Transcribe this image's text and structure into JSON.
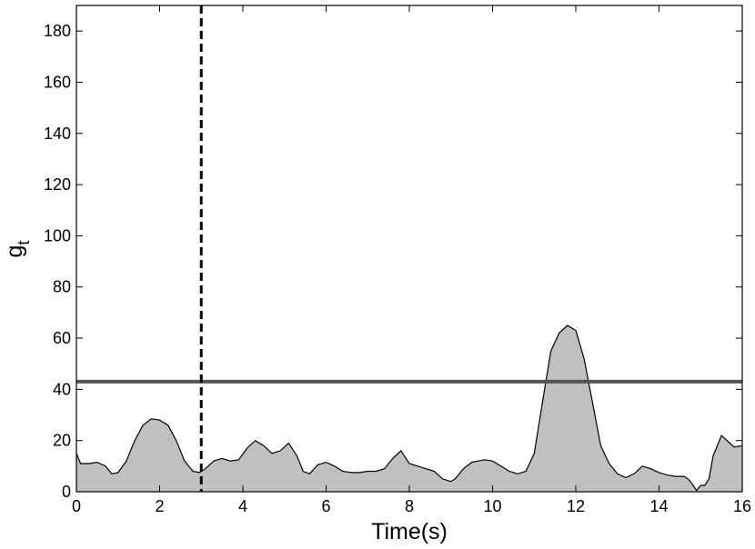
{
  "chart_data": {
    "type": "area",
    "xlabel": "Time(s)",
    "ylabel": "g",
    "ylabel_subscript": "t",
    "xlim": [
      0,
      16
    ],
    "ylim": [
      0,
      190
    ],
    "xticks": [
      0,
      2,
      4,
      6,
      8,
      10,
      12,
      14,
      16
    ],
    "yticks": [
      0,
      20,
      40,
      60,
      80,
      100,
      120,
      140,
      160,
      180
    ],
    "grid": false,
    "legend": "none",
    "colors": {
      "fill": "#c0c0c0",
      "line": "#000000",
      "threshold": "#555555",
      "marker": "#000000"
    },
    "threshold": 43,
    "vline_x": 3.0,
    "series": [
      {
        "x": [
          0,
          0.1,
          0.3,
          0.5,
          0.7,
          0.85,
          1.0,
          1.2,
          1.4,
          1.6,
          1.8,
          2.0,
          2.2,
          2.4,
          2.6,
          2.8,
          2.95,
          3.1,
          3.3,
          3.5,
          3.7,
          3.9,
          4.1,
          4.3,
          4.5,
          4.7,
          4.9,
          5.1,
          5.3,
          5.45,
          5.6,
          5.8,
          6.0,
          6.2,
          6.4,
          6.6,
          6.8,
          7.0,
          7.2,
          7.4,
          7.6,
          7.8,
          8.0,
          8.2,
          8.4,
          8.6,
          8.8,
          9.0,
          9.1,
          9.3,
          9.5,
          9.8,
          10.0,
          10.2,
          10.4,
          10.6,
          10.8,
          11.0,
          11.2,
          11.4,
          11.6,
          11.8,
          12.0,
          12.2,
          12.4,
          12.6,
          12.8,
          13.0,
          13.2,
          13.4,
          13.6,
          13.8,
          14.0,
          14.2,
          14.4,
          14.6,
          14.7,
          14.8,
          14.9,
          15.0,
          15.1,
          15.2,
          15.3,
          15.5,
          15.7,
          15.8,
          16.0
        ],
        "values": [
          15,
          11,
          11,
          11.5,
          10,
          7,
          7.5,
          12,
          20,
          26,
          28.5,
          28,
          26,
          20,
          12,
          8,
          7.5,
          9,
          12,
          13,
          12,
          12.5,
          17,
          20,
          18,
          15,
          16,
          19,
          14,
          8,
          7,
          10.5,
          11.5,
          10,
          8,
          7.5,
          7.5,
          8,
          8,
          9,
          13,
          16,
          11,
          10,
          9,
          8,
          5,
          4,
          5,
          9,
          11.5,
          12.5,
          12,
          10,
          8,
          7,
          8,
          15,
          35,
          55,
          62,
          65,
          63,
          52,
          35,
          18,
          11,
          7,
          5.5,
          7,
          10,
          9,
          7.5,
          6.5,
          6,
          6,
          5,
          3,
          0.5,
          2.5,
          2.5,
          5,
          14,
          22,
          19,
          17.5,
          18
        ]
      }
    ]
  }
}
